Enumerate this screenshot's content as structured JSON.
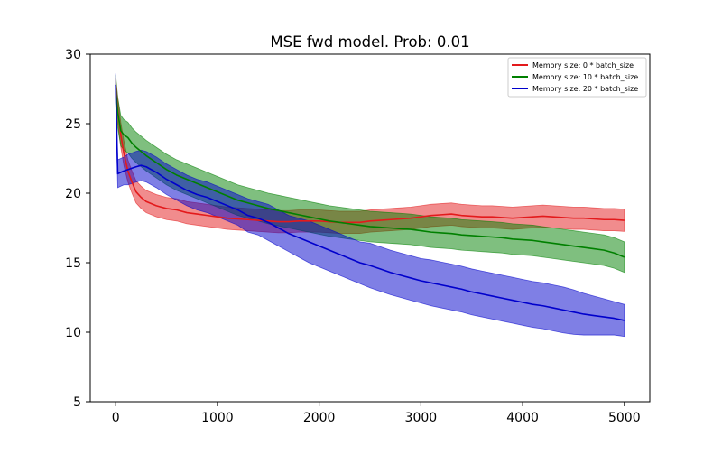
{
  "chart_data": {
    "type": "line",
    "title": "MSE fwd model. Prob: 0.01",
    "xlabel": "",
    "ylabel": "",
    "xlim": [
      -250,
      5250
    ],
    "ylim": [
      5,
      30
    ],
    "xticks": [
      0,
      1000,
      2000,
      3000,
      4000,
      5000
    ],
    "xtick_labels": [
      "0",
      "1000",
      "2000",
      "3000",
      "4000",
      "5000"
    ],
    "yticks": [
      5,
      10,
      15,
      20,
      25,
      30
    ],
    "ytick_labels": [
      "5",
      "10",
      "15",
      "20",
      "25",
      "30"
    ],
    "grid": false,
    "legend_position": "top-right",
    "shaded_band": "variability band around each mean line",
    "series": [
      {
        "name": "Memory size: 0 * batch_size",
        "color": "#e31a1c",
        "x": [
          0,
          20,
          50,
          80,
          120,
          160,
          200,
          250,
          300,
          400,
          500,
          600,
          700,
          800,
          900,
          1000,
          1100,
          1200,
          1300,
          1400,
          1500,
          1600,
          1700,
          1800,
          1900,
          2000,
          2100,
          2200,
          2300,
          2400,
          2500,
          2600,
          2700,
          2800,
          2900,
          3000,
          3100,
          3200,
          3300,
          3400,
          3500,
          3600,
          3700,
          3800,
          3900,
          4000,
          4100,
          4200,
          4300,
          4400,
          4500,
          4600,
          4700,
          4800,
          4900,
          5000
        ],
        "y": [
          27.8,
          26.0,
          24.2,
          22.9,
          21.6,
          20.8,
          20.1,
          19.7,
          19.4,
          19.1,
          18.9,
          18.8,
          18.6,
          18.5,
          18.4,
          18.3,
          18.2,
          18.15,
          18.1,
          18.05,
          18.0,
          17.95,
          17.95,
          18.0,
          18.0,
          18.0,
          17.95,
          17.9,
          17.9,
          17.9,
          18.0,
          18.05,
          18.1,
          18.15,
          18.2,
          18.3,
          18.4,
          18.45,
          18.5,
          18.4,
          18.35,
          18.3,
          18.3,
          18.25,
          18.2,
          18.25,
          18.3,
          18.35,
          18.3,
          18.25,
          18.2,
          18.2,
          18.15,
          18.1,
          18.1,
          18.05
        ],
        "lower": [
          26.8,
          25.1,
          23.3,
          22.0,
          20.8,
          20.0,
          19.3,
          18.9,
          18.6,
          18.3,
          18.1,
          18.0,
          17.8,
          17.7,
          17.6,
          17.5,
          17.4,
          17.35,
          17.3,
          17.25,
          17.2,
          17.15,
          17.15,
          17.2,
          17.2,
          17.2,
          17.15,
          17.1,
          17.1,
          17.1,
          17.2,
          17.25,
          17.3,
          17.35,
          17.4,
          17.5,
          17.6,
          17.65,
          17.7,
          17.6,
          17.55,
          17.5,
          17.5,
          17.45,
          17.4,
          17.45,
          17.5,
          17.55,
          17.5,
          17.45,
          17.4,
          17.4,
          17.35,
          17.3,
          17.3,
          17.25
        ],
        "upper": [
          28.3,
          26.9,
          25.1,
          23.8,
          22.4,
          21.6,
          20.9,
          20.5,
          20.2,
          19.9,
          19.7,
          19.6,
          19.4,
          19.3,
          19.2,
          19.1,
          19.0,
          18.95,
          18.9,
          18.85,
          18.8,
          18.75,
          18.75,
          18.8,
          18.8,
          18.8,
          18.75,
          18.7,
          18.7,
          18.7,
          18.8,
          18.85,
          18.9,
          18.95,
          19.0,
          19.1,
          19.2,
          19.25,
          19.3,
          19.2,
          19.15,
          19.1,
          19.1,
          19.05,
          19.0,
          19.05,
          19.1,
          19.15,
          19.1,
          19.05,
          19.0,
          19.0,
          18.95,
          18.9,
          18.9,
          18.85
        ]
      },
      {
        "name": "Memory size: 10 * batch_size",
        "color": "#008000",
        "x": [
          0,
          20,
          50,
          80,
          120,
          160,
          200,
          250,
          300,
          400,
          500,
          600,
          700,
          800,
          900,
          1000,
          1100,
          1200,
          1300,
          1400,
          1500,
          1600,
          1700,
          1800,
          1900,
          2000,
          2100,
          2200,
          2300,
          2400,
          2500,
          2600,
          2700,
          2800,
          2900,
          3000,
          3100,
          3200,
          3300,
          3400,
          3500,
          3600,
          3700,
          3800,
          3900,
          4000,
          4100,
          4200,
          4300,
          4400,
          4500,
          4600,
          4700,
          4800,
          4900,
          5000
        ],
        "y": [
          27.5,
          25.8,
          24.5,
          24.2,
          24.0,
          23.6,
          23.3,
          23.0,
          22.7,
          22.2,
          21.7,
          21.3,
          21.0,
          20.7,
          20.4,
          20.1,
          19.8,
          19.5,
          19.3,
          19.1,
          18.9,
          18.75,
          18.6,
          18.45,
          18.3,
          18.15,
          18.0,
          17.9,
          17.8,
          17.7,
          17.6,
          17.55,
          17.5,
          17.45,
          17.4,
          17.3,
          17.2,
          17.15,
          17.1,
          17.0,
          16.95,
          16.9,
          16.85,
          16.8,
          16.7,
          16.65,
          16.6,
          16.5,
          16.4,
          16.3,
          16.2,
          16.1,
          16.0,
          15.9,
          15.7,
          15.4
        ],
        "lower": [
          26.5,
          24.7,
          23.4,
          23.1,
          22.9,
          22.5,
          22.2,
          21.9,
          21.6,
          21.1,
          20.6,
          20.2,
          19.9,
          19.6,
          19.3,
          19.0,
          18.7,
          18.4,
          18.2,
          18.0,
          17.8,
          17.65,
          17.5,
          17.35,
          17.2,
          17.05,
          16.9,
          16.8,
          16.7,
          16.6,
          16.5,
          16.45,
          16.4,
          16.35,
          16.3,
          16.2,
          16.1,
          16.05,
          16.0,
          15.9,
          15.85,
          15.8,
          15.75,
          15.7,
          15.6,
          15.55,
          15.5,
          15.4,
          15.3,
          15.2,
          15.1,
          15.0,
          14.9,
          14.8,
          14.6,
          14.3
        ],
        "upper": [
          28.5,
          26.9,
          25.6,
          25.3,
          25.1,
          24.7,
          24.4,
          24.1,
          23.8,
          23.3,
          22.8,
          22.4,
          22.1,
          21.8,
          21.5,
          21.2,
          20.9,
          20.6,
          20.4,
          20.2,
          20.0,
          19.85,
          19.7,
          19.55,
          19.4,
          19.25,
          19.1,
          19.0,
          18.9,
          18.8,
          18.7,
          18.65,
          18.6,
          18.55,
          18.5,
          18.4,
          18.3,
          18.25,
          18.2,
          18.1,
          18.05,
          18.0,
          17.95,
          17.9,
          17.8,
          17.75,
          17.7,
          17.6,
          17.5,
          17.4,
          17.3,
          17.2,
          17.1,
          17.0,
          16.8,
          16.5
        ]
      },
      {
        "name": "Memory size: 20 * batch_size",
        "color": "#0000cc",
        "x": [
          0,
          20,
          50,
          80,
          120,
          160,
          200,
          250,
          300,
          400,
          500,
          600,
          700,
          800,
          900,
          1000,
          1100,
          1200,
          1300,
          1400,
          1500,
          1600,
          1700,
          1800,
          1900,
          2000,
          2100,
          2200,
          2300,
          2400,
          2500,
          2600,
          2700,
          2800,
          2900,
          3000,
          3100,
          3200,
          3300,
          3400,
          3500,
          3600,
          3700,
          3800,
          3900,
          4000,
          4100,
          4200,
          4300,
          4400,
          4500,
          4600,
          4700,
          4800,
          4900,
          5000
        ],
        "y": [
          27.8,
          21.4,
          21.5,
          21.6,
          21.7,
          21.8,
          21.9,
          22.0,
          21.9,
          21.5,
          21.0,
          20.6,
          20.2,
          19.9,
          19.7,
          19.4,
          19.1,
          18.8,
          18.4,
          18.2,
          17.9,
          17.5,
          17.1,
          16.8,
          16.5,
          16.2,
          15.9,
          15.6,
          15.3,
          15.0,
          14.8,
          14.55,
          14.3,
          14.1,
          13.9,
          13.7,
          13.55,
          13.4,
          13.25,
          13.1,
          12.9,
          12.75,
          12.6,
          12.45,
          12.3,
          12.15,
          12.0,
          11.9,
          11.75,
          11.6,
          11.45,
          11.3,
          11.2,
          11.1,
          11.0,
          10.85
        ],
        "lower": [
          26.8,
          20.4,
          20.5,
          20.6,
          20.6,
          20.7,
          20.8,
          20.9,
          20.8,
          20.4,
          19.9,
          19.5,
          19.1,
          18.8,
          18.6,
          18.3,
          18.0,
          17.7,
          17.2,
          17.0,
          16.6,
          16.2,
          15.8,
          15.4,
          15.0,
          14.7,
          14.4,
          14.1,
          13.8,
          13.5,
          13.2,
          12.95,
          12.7,
          12.5,
          12.3,
          12.1,
          11.9,
          11.75,
          11.6,
          11.45,
          11.25,
          11.1,
          10.95,
          10.8,
          10.65,
          10.5,
          10.35,
          10.25,
          10.1,
          9.95,
          9.85,
          9.8,
          9.8,
          9.8,
          9.8,
          9.7
        ],
        "upper": [
          28.6,
          22.4,
          22.5,
          22.6,
          22.8,
          22.9,
          23.0,
          23.1,
          23.0,
          22.6,
          22.1,
          21.7,
          21.3,
          21.0,
          20.8,
          20.5,
          20.2,
          19.9,
          19.6,
          19.4,
          19.2,
          18.8,
          18.4,
          18.2,
          18.0,
          17.7,
          17.4,
          17.1,
          16.8,
          16.5,
          16.4,
          16.15,
          15.9,
          15.7,
          15.5,
          15.3,
          15.2,
          15.05,
          14.9,
          14.75,
          14.55,
          14.4,
          14.25,
          14.1,
          13.95,
          13.8,
          13.65,
          13.55,
          13.4,
          13.25,
          13.05,
          12.8,
          12.6,
          12.4,
          12.2,
          12.0
        ]
      }
    ]
  }
}
